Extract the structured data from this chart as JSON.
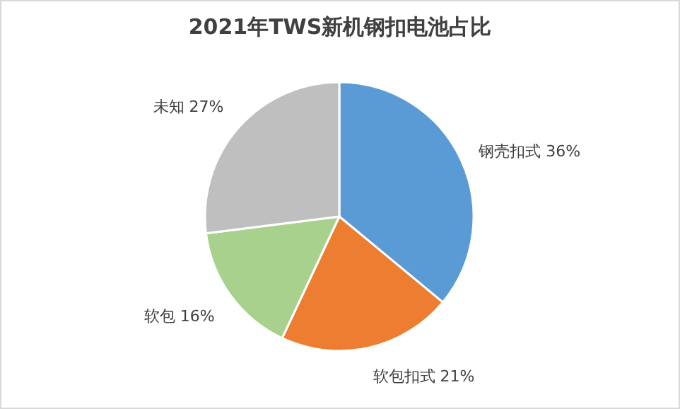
{
  "chart_data": {
    "type": "pie",
    "title": "2021年TWS新机钢扣电池占比",
    "categories": [
      "钢壳扣式",
      "软包扣式",
      "软包",
      "未知"
    ],
    "values": [
      36,
      21,
      16,
      27
    ],
    "colors": [
      "#5b9bd5",
      "#ed7d31",
      "#a9d18e",
      "#bfbfbf"
    ],
    "value_labels": [
      "36%",
      "21%",
      "16%",
      "27%"
    ],
    "legend": false
  }
}
